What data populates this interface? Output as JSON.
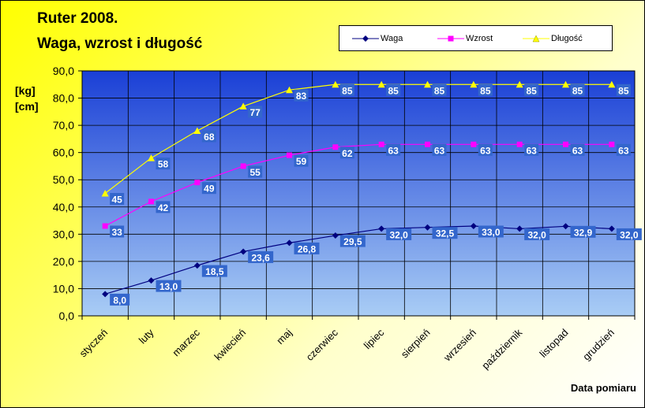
{
  "chart_data": {
    "type": "line",
    "title": [
      "Ruter 2008.",
      "Waga, wzrost i długość"
    ],
    "xlabel": "Data pomiaru",
    "ylabel": [
      "[kg]",
      "[cm]"
    ],
    "ylim": [
      0,
      90
    ],
    "yticks": [
      "0,0",
      "10,0",
      "20,0",
      "30,0",
      "40,0",
      "50,0",
      "60,0",
      "70,0",
      "80,0",
      "90,0"
    ],
    "ytick_values": [
      0,
      10,
      20,
      30,
      40,
      50,
      60,
      70,
      80,
      90
    ],
    "categories": [
      "styczeń",
      "luty",
      "marzec",
      "kwiecień",
      "maj",
      "czerwiec",
      "lipiec",
      "sierpień",
      "wrzesień",
      "październik",
      "listopad",
      "grudzień"
    ],
    "grid": true,
    "legend_position": "top-right",
    "series": [
      {
        "name": "Waga",
        "color": "#000080",
        "marker": "diamond",
        "values": [
          8.0,
          13.0,
          18.5,
          23.6,
          26.8,
          29.5,
          32.0,
          32.5,
          33.0,
          32.0,
          32.9,
          32.0
        ],
        "labels": [
          "8,0",
          "13,0",
          "18,5",
          "23,6",
          "26,8",
          "29,5",
          "32,0",
          "32,5",
          "33,0",
          "32,0",
          "32,9",
          "32,0"
        ]
      },
      {
        "name": "Wzrost",
        "color": "#ff00ff",
        "marker": "square",
        "values": [
          33,
          42,
          49,
          55,
          59,
          62,
          63,
          63,
          63,
          63,
          63,
          63
        ],
        "labels": [
          "33",
          "42",
          "49",
          "55",
          "59",
          "62",
          "63",
          "63",
          "63",
          "63",
          "63",
          "63"
        ]
      },
      {
        "name": "Długość",
        "color": "#ffff00",
        "marker": "triangle",
        "values": [
          45,
          58,
          68,
          77,
          83,
          85,
          85,
          85,
          85,
          85,
          85,
          85
        ],
        "labels": [
          "45",
          "58",
          "68",
          "77",
          "83",
          "85",
          "85",
          "85",
          "85",
          "85",
          "85",
          "85"
        ]
      }
    ],
    "plot_bg_top": "#1a3fd6",
    "plot_bg_bottom": "#a9cdf5",
    "label_box_color": "#3366cc"
  }
}
